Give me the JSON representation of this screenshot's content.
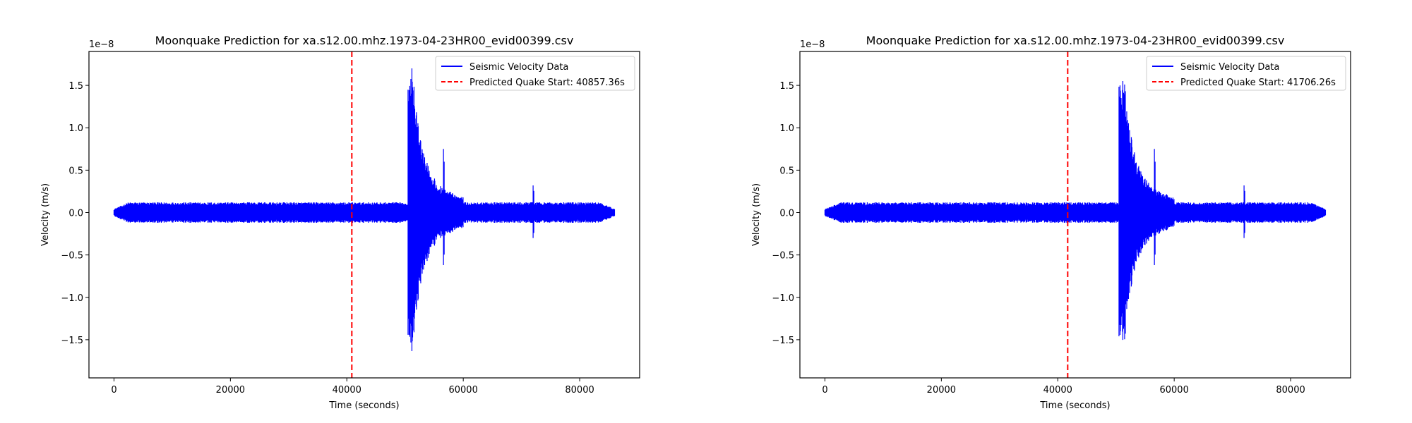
{
  "chart_data": [
    {
      "type": "line",
      "title": "Moonquake Prediction for xa.s12.00.mhz.1973-04-23HR00_evid00399.csv",
      "xlabel": "Time (seconds)",
      "ylabel": "Velocity (m/s)",
      "y_scale_label": "1e−8",
      "xlim": [
        -4300,
        90300
      ],
      "ylim": [
        -1.95,
        1.9
      ],
      "x_ticks": [
        0,
        20000,
        40000,
        60000,
        80000
      ],
      "x_tick_labels": [
        "0",
        "20000",
        "40000",
        "60000",
        "80000"
      ],
      "y_ticks": [
        -1.5,
        -1.0,
        -0.5,
        0.0,
        0.5,
        1.0,
        1.5
      ],
      "y_tick_labels": [
        "−1.5",
        "−1.0",
        "−0.5",
        "0.0",
        "0.5",
        "1.0",
        "1.5"
      ],
      "grid": false,
      "legend_position": "top-right",
      "series": [
        {
          "name": "Seismic Velocity Data",
          "color": "#0000ff",
          "style": "solid",
          "x_range": [
            0,
            86000
          ],
          "noise_amplitude": 0.11,
          "quake_onset": 50500,
          "quake_peak_envelope": [
            [
              50500,
              1.5
            ],
            [
              51200,
              1.75
            ],
            [
              52000,
              1.2
            ],
            [
              53000,
              0.75
            ],
            [
              54500,
              0.45
            ],
            [
              56500,
              0.28
            ],
            [
              60000,
              0.18
            ]
          ],
          "spikes": [
            [
              56600,
              0.75,
              -0.62
            ],
            [
              72000,
              0.32,
              -0.3
            ]
          ]
        },
        {
          "name": "Predicted Quake Start: 40857.36s",
          "color": "#ff0000",
          "style": "dashed",
          "x": 40857.36
        }
      ]
    },
    {
      "type": "line",
      "title": "Moonquake Prediction for xa.s12.00.mhz.1973-04-23HR00_evid00399.csv",
      "xlabel": "Time (seconds)",
      "ylabel": "Velocity (m/s)",
      "y_scale_label": "1e−8",
      "xlim": [
        -4300,
        90300
      ],
      "ylim": [
        -1.95,
        1.9
      ],
      "x_ticks": [
        0,
        20000,
        40000,
        60000,
        80000
      ],
      "x_tick_labels": [
        "0",
        "20000",
        "40000",
        "60000",
        "80000"
      ],
      "y_ticks": [
        -1.5,
        -1.0,
        -0.5,
        0.0,
        0.5,
        1.0,
        1.5
      ],
      "y_tick_labels": [
        "−1.5",
        "−1.0",
        "−0.5",
        "0.0",
        "0.5",
        "1.0",
        "1.5"
      ],
      "grid": false,
      "legend_position": "top-right",
      "series": [
        {
          "name": "Seismic Velocity Data",
          "color": "#0000ff",
          "style": "solid",
          "x_range": [
            0,
            86000
          ],
          "noise_amplitude": 0.11,
          "quake_onset": 50500,
          "quake_peak_envelope": [
            [
              50500,
              1.5
            ],
            [
              51200,
              1.75
            ],
            [
              52000,
              1.2
            ],
            [
              53000,
              0.75
            ],
            [
              54500,
              0.45
            ],
            [
              56500,
              0.28
            ],
            [
              60000,
              0.18
            ]
          ],
          "spikes": [
            [
              56600,
              0.75,
              -0.62
            ],
            [
              72000,
              0.32,
              -0.3
            ]
          ]
        },
        {
          "name": "Predicted Quake Start: 41706.26s",
          "color": "#ff0000",
          "style": "dashed",
          "x": 41706.26
        }
      ]
    }
  ]
}
